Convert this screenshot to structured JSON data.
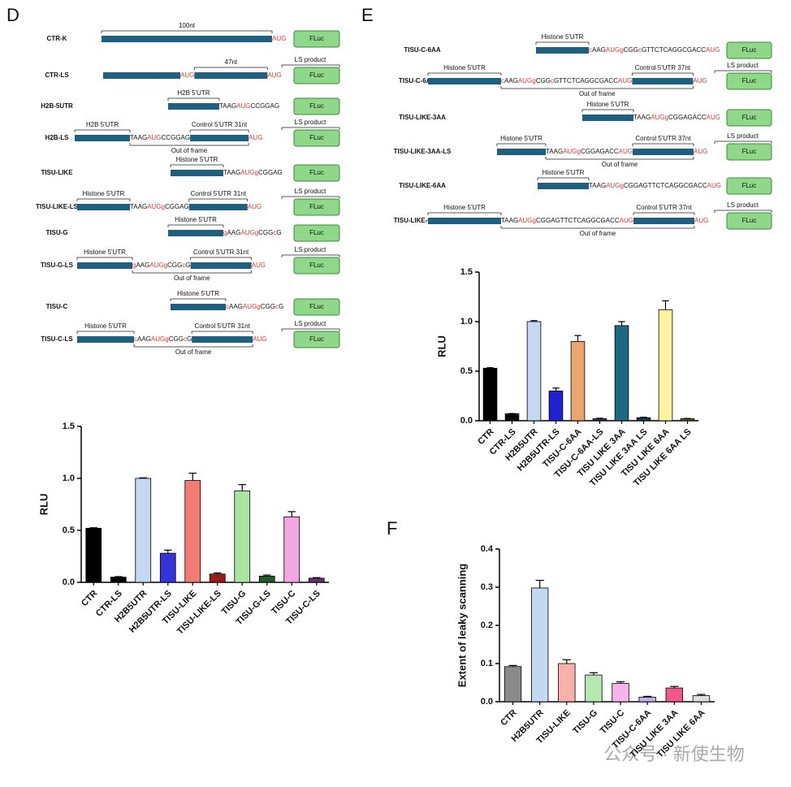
{
  "panel_labels": [
    "D",
    "E",
    "F"
  ],
  "watermark": "公众号 · 新使生物",
  "diagrams": [
    {
      "constructs": [
        {
          "name": "CTR-K",
          "parts": [
            {
              "kind": "bar",
              "label": "100nt"
            },
            {
              "kind": "seq",
              "pieces": [
                {
                  "text": "AUG",
                  "color": "#e53935"
                }
              ]
            },
            {
              "kind": "box",
              "text": "FLuc"
            }
          ]
        },
        {
          "name": "CTR-LS",
          "parts": [
            {
              "kind": "bar"
            },
            {
              "kind": "seq",
              "pieces": [
                {
                  "text": "AUG",
                  "color": "#e53935"
                }
              ]
            },
            {
              "kind": "bar",
              "label": "47nt"
            },
            {
              "kind": "seq",
              "pieces": [
                {
                  "text": "AUG",
                  "color": "#e53935"
                }
              ]
            },
            {
              "kind": "box",
              "text": "FLuc",
              "label": "LS product"
            }
          ]
        },
        {
          "name": "H2B-5UTR",
          "parts": [
            {
              "kind": "bar",
              "label": "H2B 5'UTR"
            },
            {
              "kind": "seq",
              "pieces": [
                {
                  "text": "TAAG"
                },
                {
                  "text": "AUG",
                  "color": "#e53935"
                },
                {
                  "text": "CCGGAG"
                }
              ]
            },
            {
              "kind": "box",
              "text": "FLuc"
            }
          ]
        },
        {
          "name": "H2B-LS",
          "note": "Out of frame",
          "parts": [
            {
              "kind": "bar",
              "label": "H2B 5'UTR"
            },
            {
              "kind": "seq",
              "pieces": [
                {
                  "text": "TAAG"
                },
                {
                  "text": "AUG",
                  "color": "#e53935"
                },
                {
                  "text": "CCGGAG"
                }
              ]
            },
            {
              "kind": "bar",
              "label": "Control 5'UTR 31nt"
            },
            {
              "kind": "seq",
              "pieces": [
                {
                  "text": "AUG",
                  "color": "#e53935"
                }
              ]
            },
            {
              "kind": "box",
              "text": "FLuc",
              "label": "LS product"
            }
          ]
        },
        {
          "name": "TISU-LIKE",
          "parts": [
            {
              "kind": "bar",
              "label": "Histone 5'UTR"
            },
            {
              "kind": "seq",
              "pieces": [
                {
                  "text": "TAAG"
                },
                {
                  "text": "AUG",
                  "color": "#e53935"
                },
                {
                  "text": "g",
                  "color": "#e53935"
                },
                {
                  "text": "CGGAG"
                }
              ]
            },
            {
              "kind": "box",
              "text": "FLuc"
            }
          ]
        },
        {
          "name": "TISU-LIKE-LS",
          "parts": [
            {
              "kind": "bar",
              "label": "Histone 5'UTR"
            },
            {
              "kind": "seq",
              "pieces": [
                {
                  "text": "TAAG"
                },
                {
                  "text": "AUG",
                  "color": "#e53935"
                },
                {
                  "text": "g",
                  "color": "#e53935"
                },
                {
                  "text": "CGGAG"
                }
              ]
            },
            {
              "kind": "bar",
              "label": "Control 5'UTR 31nt"
            },
            {
              "kind": "seq",
              "pieces": [
                {
                  "text": "AUG",
                  "color": "#e53935"
                }
              ]
            },
            {
              "kind": "box",
              "text": "FLuc",
              "label": "LS product"
            }
          ]
        },
        {
          "name": "TISU-G",
          "parts": [
            {
              "kind": "bar",
              "label": "Histone 5'UTR"
            },
            {
              "kind": "seq",
              "pieces": [
                {
                  "text": "g",
                  "color": "#e53935"
                },
                {
                  "text": "AAG"
                },
                {
                  "text": "AUG",
                  "color": "#e53935"
                },
                {
                  "text": "g",
                  "color": "#e53935"
                },
                {
                  "text": "CGG"
                },
                {
                  "text": "c",
                  "color": "#e53935"
                },
                {
                  "text": "G"
                }
              ]
            },
            {
              "kind": "box",
              "text": "FLuc"
            }
          ]
        },
        {
          "name": "TISU-G-LS",
          "note": "Out of frame",
          "parts": [
            {
              "kind": "bar",
              "label": "Histone 5'UTR"
            },
            {
              "kind": "seq",
              "pieces": [
                {
                  "text": "g",
                  "color": "#e53935"
                },
                {
                  "text": "AAG"
                },
                {
                  "text": "AUG",
                  "color": "#e53935"
                },
                {
                  "text": "g",
                  "color": "#e53935"
                },
                {
                  "text": "CGG"
                },
                {
                  "text": "c",
                  "color": "#e53935"
                },
                {
                  "text": "G"
                }
              ]
            },
            {
              "kind": "bar",
              "label": "Control 5'UTR 31nt"
            },
            {
              "kind": "seq",
              "pieces": [
                {
                  "text": "AUG",
                  "color": "#e53935"
                }
              ]
            },
            {
              "kind": "box",
              "text": "FLuc",
              "label": "LS product"
            }
          ]
        },
        {
          "name": "TISU-C",
          "parts": [
            {
              "kind": "bar",
              "label": "Histone 5'UTR"
            },
            {
              "kind": "seq",
              "pieces": [
                {
                  "text": "c",
                  "color": "#e53935"
                },
                {
                  "text": "AAG"
                },
                {
                  "text": "AUG",
                  "color": "#e53935"
                },
                {
                  "text": "g",
                  "color": "#e53935"
                },
                {
                  "text": "CGG"
                },
                {
                  "text": "c",
                  "color": "#e53935"
                },
                {
                  "text": "G"
                }
              ]
            },
            {
              "kind": "box",
              "text": "FLuc"
            }
          ]
        },
        {
          "name": "TISU-C-LS",
          "note": "Out of frame",
          "parts": [
            {
              "kind": "bar",
              "label": "Histone 5'UTR"
            },
            {
              "kind": "seq",
              "pieces": [
                {
                  "text": "c",
                  "color": "#e53935"
                },
                {
                  "text": "AAG"
                },
                {
                  "text": "AUG",
                  "color": "#e53935"
                },
                {
                  "text": "g",
                  "color": "#e53935"
                },
                {
                  "text": "CGG"
                },
                {
                  "text": "c",
                  "color": "#e53935"
                },
                {
                  "text": "G"
                }
              ]
            },
            {
              "kind": "bar",
              "label": "Control 5'UTR 31nt"
            },
            {
              "kind": "seq",
              "pieces": [
                {
                  "text": "AUG",
                  "color": "#e53935"
                }
              ]
            },
            {
              "kind": "box",
              "text": "FLuc",
              "label": "LS product"
            }
          ]
        }
      ]
    },
    {
      "constructs": [
        {
          "name": "TISU-C-6AA",
          "parts": [
            {
              "kind": "bar",
              "label": "Histone 5'UTR"
            },
            {
              "kind": "seq",
              "pieces": [
                {
                  "text": "c",
                  "color": "#e53935"
                },
                {
                  "text": "AAG"
                },
                {
                  "text": "AUG",
                  "color": "#e53935"
                },
                {
                  "text": "g",
                  "color": "#e53935"
                },
                {
                  "text": "CGG"
                },
                {
                  "text": "c",
                  "color": "#e53935"
                },
                {
                  "text": "GTTCTCAGGCGACC"
                },
                {
                  "text": "AUG",
                  "color": "#e53935"
                }
              ]
            },
            {
              "kind": "box",
              "text": "FLuc"
            }
          ]
        },
        {
          "name": "TISU-C-6AA-LS",
          "note": "Out of frame",
          "parts": [
            {
              "kind": "bar",
              "label": "Histone 5'UTR"
            },
            {
              "kind": "seq",
              "pieces": [
                {
                  "text": "c",
                  "color": "#e53935"
                },
                {
                  "text": "AAG"
                },
                {
                  "text": "AUG",
                  "color": "#e53935"
                },
                {
                  "text": "g",
                  "color": "#e53935"
                },
                {
                  "text": "CGG"
                },
                {
                  "text": "c",
                  "color": "#e53935"
                },
                {
                  "text": "GTTCTCAGGCGACC"
                },
                {
                  "text": "AUG",
                  "color": "#e53935"
                }
              ]
            },
            {
              "kind": "bar",
              "label": "Control 5'UTR 37nt"
            },
            {
              "kind": "seq",
              "pieces": [
                {
                  "text": "AUG",
                  "color": "#e53935"
                }
              ]
            },
            {
              "kind": "box",
              "text": "FLuc",
              "label": "LS product"
            }
          ]
        },
        {
          "name": "TISU-LIKE-3AA",
          "parts": [
            {
              "kind": "bar",
              "label": "Histone 5'UTR"
            },
            {
              "kind": "seq",
              "pieces": [
                {
                  "text": "TAAG"
                },
                {
                  "text": "AUG",
                  "color": "#e53935"
                },
                {
                  "text": "g",
                  "color": "#e53935"
                },
                {
                  "text": "CGGAGACC"
                },
                {
                  "text": "AUG",
                  "color": "#e53935"
                }
              ]
            },
            {
              "kind": "box",
              "text": "FLuc"
            }
          ]
        },
        {
          "name": "TISU-LIKE-3AA-LS",
          "note": "Out of frame",
          "parts": [
            {
              "kind": "bar",
              "label": "Histone 5'UTR"
            },
            {
              "kind": "seq",
              "pieces": [
                {
                  "text": "TAAG"
                },
                {
                  "text": "AUG",
                  "color": "#e53935"
                },
                {
                  "text": "g",
                  "color": "#e53935"
                },
                {
                  "text": "CGGAGACC"
                },
                {
                  "text": "AUG",
                  "color": "#e53935"
                }
              ]
            },
            {
              "kind": "bar",
              "label": "Control 5'UTR 37nt"
            },
            {
              "kind": "seq",
              "pieces": [
                {
                  "text": "AUG",
                  "color": "#e53935"
                }
              ]
            },
            {
              "kind": "box",
              "text": "FLuc",
              "label": "LS product"
            }
          ]
        },
        {
          "name": "TISU-LIKE-6AA",
          "parts": [
            {
              "kind": "bar",
              "label": "Histone 5'UTR"
            },
            {
              "kind": "seq",
              "pieces": [
                {
                  "text": "TAAG"
                },
                {
                  "text": "AUG",
                  "color": "#e53935"
                },
                {
                  "text": "g",
                  "color": "#e53935"
                },
                {
                  "text": "CGGAGTTCTCAGGCGACC"
                },
                {
                  "text": "AUG",
                  "color": "#e53935"
                }
              ]
            },
            {
              "kind": "box",
              "text": "FLuc"
            }
          ]
        },
        {
          "name": "TISU-LIKE-6AA-LS",
          "note": "Out of frame",
          "parts": [
            {
              "kind": "bar",
              "label": "Histone 5'UTR"
            },
            {
              "kind": "seq",
              "pieces": [
                {
                  "text": "TAAG"
                },
                {
                  "text": "AUG",
                  "color": "#e53935"
                },
                {
                  "text": "g",
                  "color": "#e53935"
                },
                {
                  "text": "CGGAGTTCTCAGGCGACC"
                },
                {
                  "text": "AUG",
                  "color": "#e53935"
                }
              ]
            },
            {
              "kind": "bar",
              "label": "Control 5'UTR 37nt"
            },
            {
              "kind": "seq",
              "pieces": [
                {
                  "text": "AUG",
                  "color": "#e53935"
                }
              ]
            },
            {
              "kind": "box",
              "text": "FLuc",
              "label": "LS product"
            }
          ]
        }
      ]
    }
  ],
  "chart_data": [
    {
      "type": "bar",
      "ylabel": "RLU",
      "categories": [
        "CTR",
        "CTR-LS",
        "H2B5UTR",
        "H2B5UTR-LS",
        "TISU-LIKE",
        "TISU-LIKE-LS",
        "TISU-G",
        "TISU-G-LS",
        "TISU-C",
        "TISU-C-LS"
      ],
      "values": [
        0.52,
        0.05,
        1.0,
        0.28,
        0.98,
        0.08,
        0.88,
        0.06,
        0.63,
        0.04
      ],
      "errors": [
        0.005,
        0.005,
        0.005,
        0.03,
        0.07,
        0.01,
        0.06,
        0.01,
        0.05,
        0.005
      ],
      "colors": [
        "#000000",
        "#000000",
        "#c5d8f2",
        "#3434d8",
        "#f47a76",
        "#9a1c1c",
        "#a8e6a0",
        "#1f5a28",
        "#f2a6e4",
        "#6e2a72"
      ],
      "ylim": [
        0,
        1.5
      ],
      "yticks": [
        {
          "value": 0,
          "label": "0.0"
        },
        0.5,
        {
          "value": 1,
          "label": "1.0"
        },
        1.5
      ]
    },
    {
      "type": "bar",
      "ylabel": "RLU",
      "categories": [
        "CTR",
        "CTR-LS",
        "H2B5UTR",
        "H2B5UTR-LS",
        "TISU-C-6AA",
        "TISU-C-6AA-LS",
        "TISU LIKE 3AA",
        "TISU LIKE 3AA LS",
        "TISU LIKE 6AA",
        "TISU LIKE 6AA LS"
      ],
      "values": [
        0.53,
        0.07,
        1.0,
        0.3,
        0.8,
        0.02,
        0.96,
        0.03,
        1.12,
        0.02
      ],
      "errors": [
        0.005,
        0.003,
        0.01,
        0.03,
        0.06,
        0.005,
        0.04,
        0.005,
        0.09,
        0.003
      ],
      "colors": [
        "#000000",
        "#000000",
        "#c5d8f2",
        "#2020d0",
        "#e8a56e",
        "#2b3550",
        "#1c6a82",
        "#123e4c",
        "#fff4a0",
        "#5c5a20"
      ],
      "ylim": [
        0,
        1.5
      ],
      "yticks": [
        {
          "value": 0,
          "label": "0.0"
        },
        0.5,
        {
          "value": 1,
          "label": "1.0"
        },
        1.5
      ]
    },
    {
      "type": "bar",
      "ylabel": "Extent of leaky scanning",
      "categories": [
        "CTR",
        "H2B5UTR",
        "TISU-LIKE",
        "TISU-G",
        "TISU-C",
        "TISU-C-6AA",
        "TISU LIKE 3AA",
        "TISU LIKE 6AA"
      ],
      "values": [
        0.092,
        0.298,
        0.1,
        0.07,
        0.048,
        0.012,
        0.036,
        0.016
      ],
      "errors": [
        0.003,
        0.02,
        0.01,
        0.006,
        0.004,
        0.002,
        0.004,
        0.003
      ],
      "colors": [
        "#8a8a8a",
        "#c5d8f2",
        "#f7b0aa",
        "#b4e8b0",
        "#f4b6ea",
        "#c6b2ea",
        "#f2578a",
        "#dddddd"
      ],
      "ylim": [
        0,
        0.4
      ],
      "yticks": [
        {
          "value": 0,
          "label": "0.0"
        },
        0.1,
        0.2,
        0.3,
        0.4
      ]
    }
  ]
}
